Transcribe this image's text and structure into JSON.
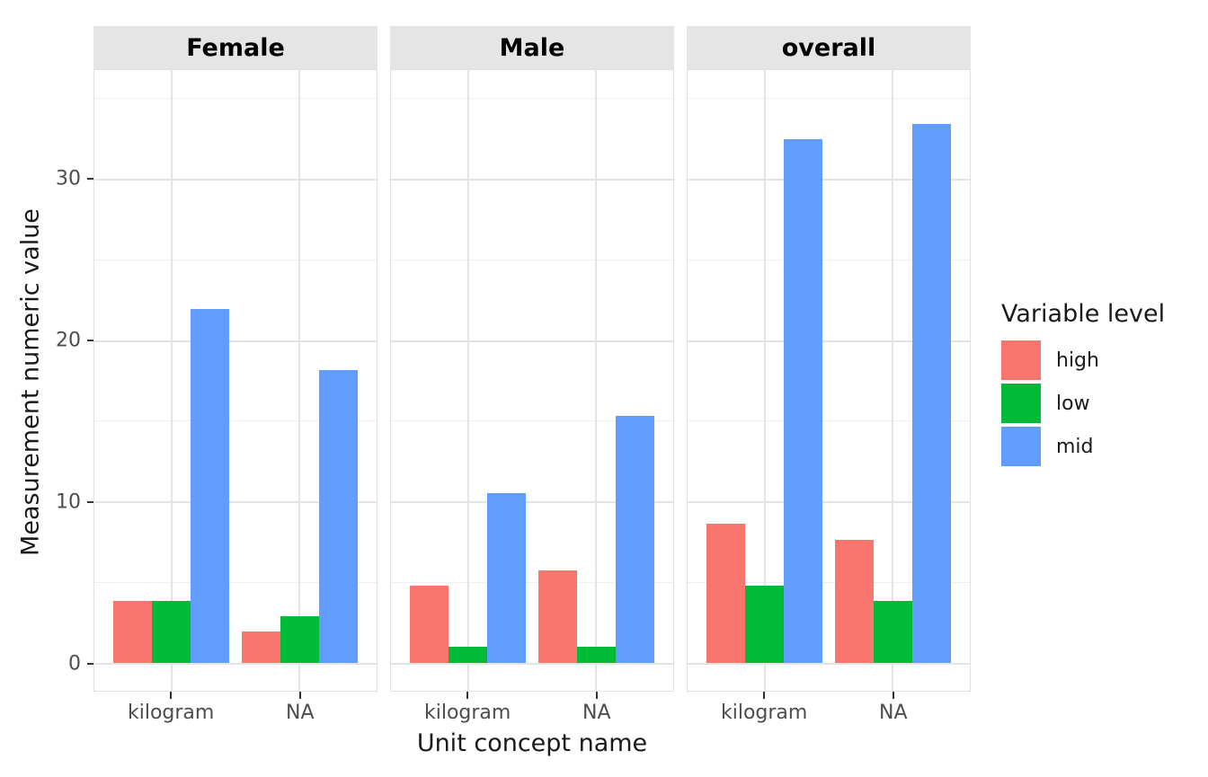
{
  "chart_data": {
    "type": "bar",
    "title": "",
    "xlabel": "Unit concept name",
    "ylabel": "Measurement numeric value",
    "categories": [
      "kilogram",
      "NA"
    ],
    "yticks": [
      0,
      10,
      20,
      30
    ],
    "yticks_minor": [
      5,
      15,
      25,
      35
    ],
    "ylim": [
      -1.75,
      36.75
    ],
    "grid": true,
    "legend": {
      "title": "Variable level",
      "position": "right",
      "entries": [
        {
          "label": "high",
          "color": "#F8766D"
        },
        {
          "label": "low",
          "color": "#00BA38"
        },
        {
          "label": "mid",
          "color": "#619CFF"
        }
      ]
    },
    "facets": [
      {
        "label": "Female",
        "series": [
          {
            "name": "high",
            "values": [
              4,
              2
            ]
          },
          {
            "name": "low",
            "values": [
              4,
              3
            ]
          },
          {
            "name": "mid",
            "values": [
              23,
              19
            ]
          }
        ]
      },
      {
        "label": "Male",
        "series": [
          {
            "name": "high",
            "values": [
              5,
              6
            ]
          },
          {
            "name": "low",
            "values": [
              1,
              1
            ]
          },
          {
            "name": "mid",
            "values": [
              11,
              16
            ]
          }
        ]
      },
      {
        "label": "overall",
        "series": [
          {
            "name": "high",
            "values": [
              9,
              8
            ]
          },
          {
            "name": "low",
            "values": [
              5,
              4
            ]
          },
          {
            "name": "mid",
            "values": [
              34,
              35
            ]
          }
        ]
      }
    ]
  },
  "colors": {
    "strip_background": "#E5E5E5",
    "grid_major": "#E3E3E3",
    "grid_minor": "#EFEFEF",
    "axis_text": "#4D4D4D",
    "axis_title": "#1A1A1A"
  }
}
